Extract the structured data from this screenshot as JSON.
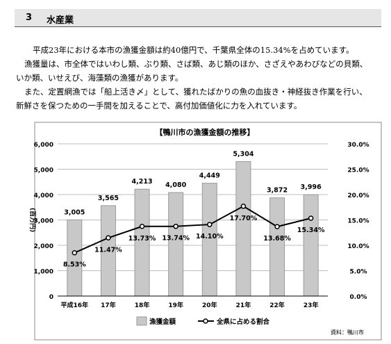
{
  "section": {
    "number": "3",
    "title": "水産業"
  },
  "paragraphs": [
    [
      "平成23年における本市の漁獲金額は約40億円で、千葉県全体の15.34%を占めています。"
    ],
    [
      "漁獲量は、市全体ではいわし類、ぶり類、さば類、あじ類のほか、さざえやあわびなどの貝類、",
      "いか類、いせえび、海藻類の漁獲があります。"
    ],
    [
      "また、定置網漁では「船上活き〆」として、獲れたばかりの魚の血抜き・神経抜き作業を行い、",
      "新鮮さを保つための一手間を加えることで、高付加価値化に力を入れています。"
    ]
  ],
  "chart_data": {
    "type": "bar",
    "title": "【鴨川市の漁獲金額の推移】",
    "categories": [
      "平成16年",
      "17年",
      "18年",
      "19年",
      "20年",
      "21年",
      "22年",
      "23年"
    ],
    "series": [
      {
        "name": "漁獲金額",
        "type": "bar",
        "axis": "left",
        "values": [
          3005,
          3565,
          4213,
          4080,
          4449,
          5304,
          3872,
          3996
        ],
        "labels": [
          "3,005",
          "3,565",
          "4,213",
          "4,080",
          "4,449",
          "5,304",
          "3,872",
          "3,996"
        ]
      },
      {
        "name": "全県に占める割合",
        "type": "line",
        "axis": "right",
        "values": [
          8.53,
          11.47,
          13.73,
          13.74,
          14.1,
          17.7,
          13.68,
          15.34
        ],
        "labels": [
          "8.53%",
          "11.47%",
          "13.73%",
          "13.74%",
          "14.10%",
          "17.70%",
          "13.68%",
          "15.34%"
        ]
      }
    ],
    "ylabel": "(百万円)",
    "ylim": [
      0,
      6000
    ],
    "yticks": [
      "0",
      "1,000",
      "2,000",
      "3,000",
      "4,000",
      "5,000",
      "6,000"
    ],
    "y2lim": [
      0,
      30
    ],
    "y2ticks": [
      "0.0%",
      "5.0%",
      "10.0%",
      "15.0%",
      "20.0%",
      "25.0%",
      "30.0%"
    ],
    "grid": true,
    "legend_position": "bottom",
    "source": "資料：鴨川市",
    "colors": {
      "bar": "#c8c8c8",
      "bar_stroke": "#9a9a9a",
      "line": "#000000",
      "grid": "#bdbdbd",
      "frame": "#888888"
    }
  }
}
